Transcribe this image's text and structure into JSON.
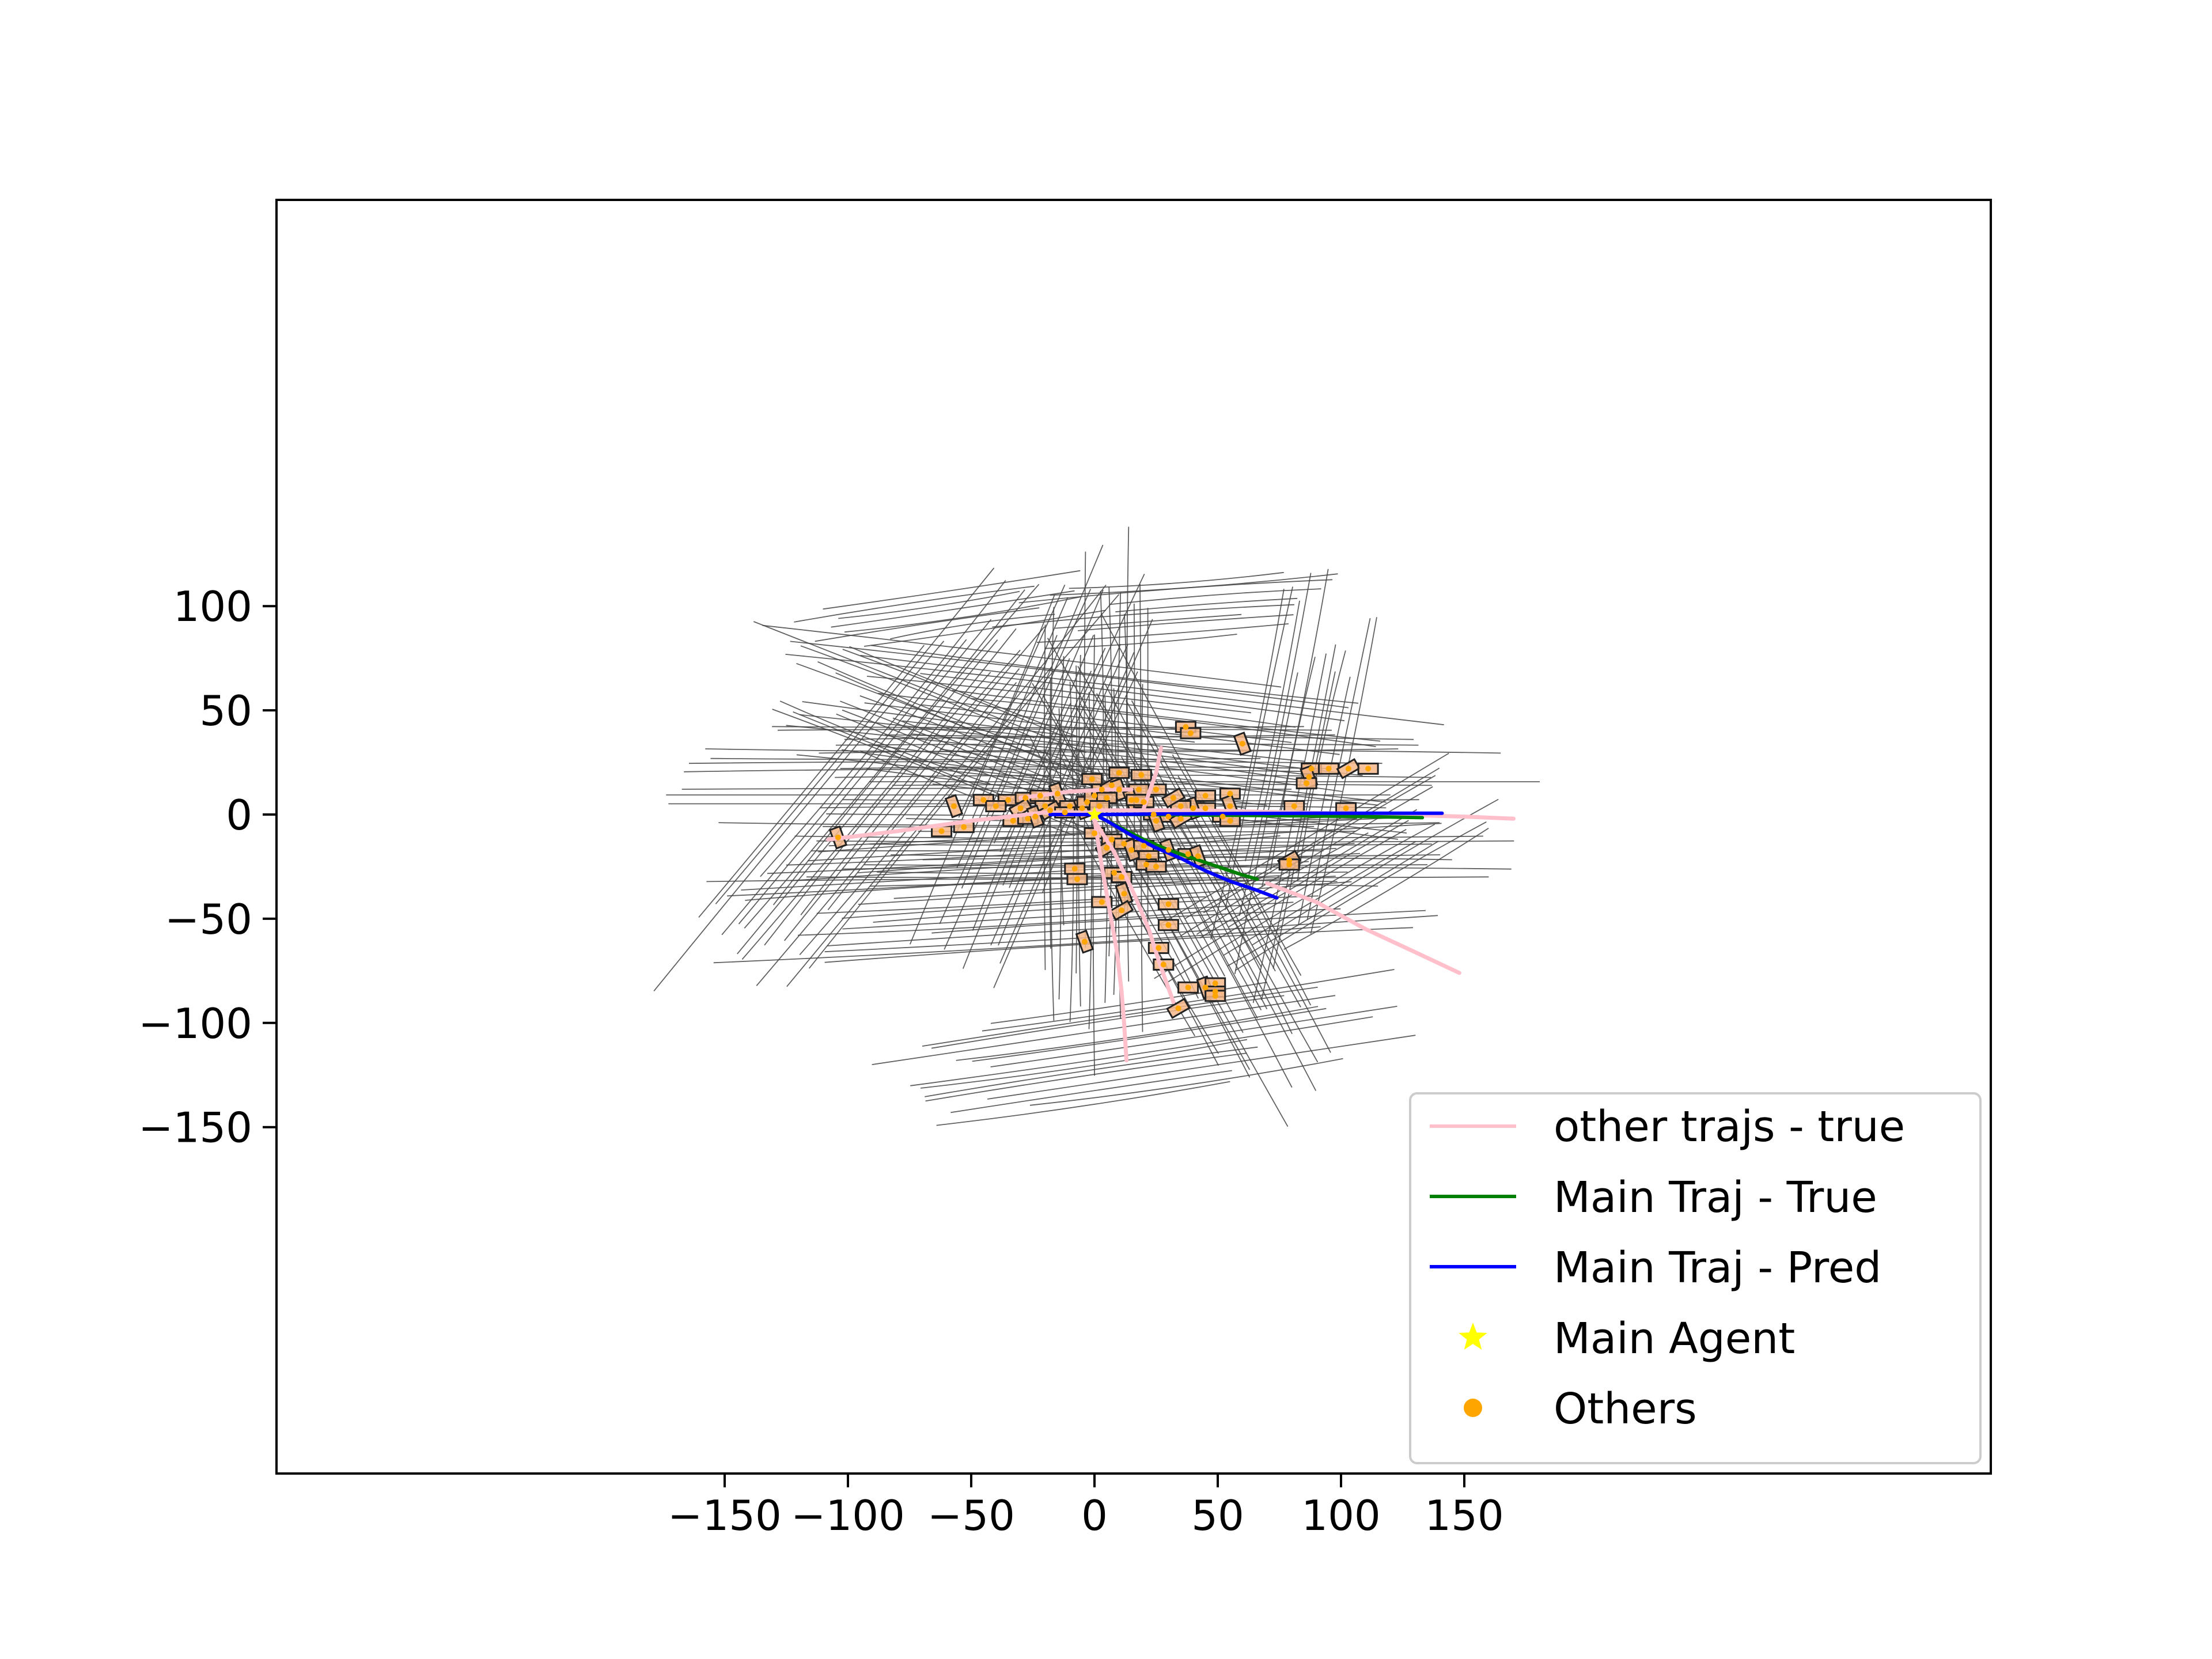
{
  "chart_data": {
    "type": "scatter",
    "title": "",
    "xlabel": "",
    "ylabel": "",
    "xlim": [
      -165,
      185
    ],
    "ylim": [
      -160,
      147
    ],
    "xticks": [
      -150,
      -100,
      -50,
      0,
      50,
      100,
      150
    ],
    "yticks": [
      -150,
      -100,
      -50,
      0,
      50,
      100
    ],
    "xtick_labels": [
      "−150",
      "−100",
      "−50",
      "0",
      "50",
      "100",
      "150"
    ],
    "ytick_labels": [
      "−150",
      "−100",
      "−50",
      "0",
      "50",
      "100"
    ],
    "grid": false,
    "legend_position": "lower-right",
    "legend": [
      {
        "label": "other trajs - true",
        "kind": "line",
        "color": "#ffc0cb"
      },
      {
        "label": "Main Traj - True",
        "kind": "line",
        "color": "#008000"
      },
      {
        "label": "Main Traj - Pred",
        "kind": "line",
        "color": "#0000ff"
      },
      {
        "label": "Main Agent",
        "kind": "star",
        "color": "#ffff00"
      },
      {
        "label": "Others",
        "kind": "dot",
        "color": "#ffa500"
      }
    ],
    "series": [
      {
        "name": "Main Traj - True",
        "color": "#008000",
        "points": [
          [
            0,
            0
          ],
          [
            5,
            -3
          ],
          [
            10,
            -6
          ],
          [
            20,
            -12
          ],
          [
            30,
            -17
          ],
          [
            40,
            -21
          ],
          [
            50,
            -25
          ],
          [
            60,
            -29
          ],
          [
            66,
            -31
          ]
        ]
      },
      {
        "name": "Main Traj - True",
        "color": "#008000",
        "points": [
          [
            0,
            0
          ],
          [
            20,
            0
          ],
          [
            50,
            -0.3
          ],
          [
            80,
            -0.6
          ],
          [
            110,
            -1
          ],
          [
            133,
            -1.5
          ]
        ]
      },
      {
        "name": "Main Traj - Pred",
        "color": "#0000ff",
        "points": [
          [
            -18,
            0
          ],
          [
            0,
            0
          ],
          [
            5,
            -3
          ],
          [
            15,
            -10
          ],
          [
            25,
            -16
          ],
          [
            35,
            -21
          ],
          [
            45,
            -27
          ],
          [
            55,
            -32
          ],
          [
            65,
            -36
          ],
          [
            74,
            -40
          ]
        ]
      },
      {
        "name": "Main Traj - Pred",
        "color": "#0000ff",
        "points": [
          [
            0,
            0
          ],
          [
            30,
            0.3
          ],
          [
            60,
            0.5
          ],
          [
            90,
            0.6
          ],
          [
            120,
            0.6
          ],
          [
            141,
            0.6
          ]
        ]
      },
      {
        "name": "other trajs - true",
        "color": "#ffc0cb",
        "points": [
          [
            -108,
            -12
          ],
          [
            -80,
            -8
          ],
          [
            -50,
            -3
          ],
          [
            -20,
            1
          ],
          [
            0,
            1
          ]
        ]
      },
      {
        "name": "other trajs - true",
        "color": "#ffc0cb",
        "points": [
          [
            0,
            2
          ],
          [
            40,
            2
          ],
          [
            80,
            1
          ],
          [
            120,
            0
          ],
          [
            150,
            -1
          ],
          [
            170,
            -2
          ]
        ]
      },
      {
        "name": "other trajs - true",
        "color": "#ffc0cb",
        "points": [
          [
            0,
            -2
          ],
          [
            3,
            -25
          ],
          [
            6,
            -45
          ],
          [
            9,
            -65
          ],
          [
            11,
            -85
          ],
          [
            12,
            -100
          ],
          [
            13,
            -118
          ]
        ]
      },
      {
        "name": "other trajs - true",
        "color": "#ffc0cb",
        "points": [
          [
            0,
            -3
          ],
          [
            8,
            -18
          ],
          [
            16,
            -38
          ],
          [
            22,
            -55
          ],
          [
            26,
            -70
          ],
          [
            32,
            -90
          ]
        ]
      },
      {
        "name": "other trajs - true",
        "color": "#ffc0cb",
        "points": [
          [
            -30,
            8
          ],
          [
            -10,
            11
          ],
          [
            5,
            12
          ],
          [
            15,
            12
          ]
        ]
      },
      {
        "name": "other trajs - true",
        "color": "#ffc0cb",
        "points": [
          [
            20,
            3
          ],
          [
            22,
            10
          ],
          [
            25,
            20
          ],
          [
            27,
            32
          ]
        ]
      },
      {
        "name": "other trajs - true",
        "color": "#ffc0cb",
        "points": [
          [
            70,
            -33
          ],
          [
            90,
            -42
          ],
          [
            110,
            -55
          ],
          [
            130,
            -66
          ],
          [
            148,
            -76
          ]
        ]
      }
    ],
    "main_agent": {
      "x": 0,
      "y": 0
    },
    "others": [
      [
        -57,
        4
      ],
      [
        -45,
        7
      ],
      [
        -35,
        7
      ],
      [
        -28,
        8
      ],
      [
        -22,
        9
      ],
      [
        -15,
        10
      ],
      [
        -40,
        4
      ],
      [
        -30,
        3
      ],
      [
        -20,
        4
      ],
      [
        -10,
        4
      ],
      [
        -5,
        3
      ],
      [
        -3,
        6
      ],
      [
        0,
        9
      ],
      [
        3,
        12
      ],
      [
        7,
        14
      ],
      [
        10,
        12
      ],
      [
        5,
        8
      ],
      [
        2,
        4
      ],
      [
        -33,
        -3
      ],
      [
        -27,
        -2
      ],
      [
        -24,
        -1
      ],
      [
        -18,
        2
      ],
      [
        -12,
        1
      ],
      [
        -62,
        -8
      ],
      [
        -53,
        -6
      ],
      [
        -104,
        -11
      ],
      [
        0,
        -9
      ],
      [
        7,
        -12
      ],
      [
        5,
        -16
      ],
      [
        12,
        -14
      ],
      [
        15,
        -17
      ],
      [
        20,
        -15
      ],
      [
        22,
        -20
      ],
      [
        21,
        -24
      ],
      [
        25,
        -25
      ],
      [
        30,
        -17
      ],
      [
        -8,
        -26
      ],
      [
        -7,
        -31
      ],
      [
        8,
        -28
      ],
      [
        11,
        -30
      ],
      [
        12,
        -38
      ],
      [
        3,
        -42
      ],
      [
        11,
        -46
      ],
      [
        30,
        -43
      ],
      [
        30,
        -53
      ],
      [
        -4,
        -61
      ],
      [
        26,
        -64
      ],
      [
        28,
        -72
      ],
      [
        38,
        -83
      ],
      [
        34,
        -93
      ],
      [
        45,
        -83
      ],
      [
        49,
        -81
      ],
      [
        49,
        -85
      ],
      [
        49,
        -87
      ],
      [
        38,
        -19
      ],
      [
        42,
        -20
      ],
      [
        79,
        -22
      ],
      [
        79,
        -24
      ],
      [
        37,
        42
      ],
      [
        39,
        39
      ],
      [
        60,
        34
      ],
      [
        88,
        22
      ],
      [
        95,
        22
      ],
      [
        103,
        22
      ],
      [
        111,
        22
      ],
      [
        87,
        18
      ],
      [
        86,
        15
      ],
      [
        81,
        4
      ],
      [
        102,
        3
      ],
      [
        55,
        10
      ],
      [
        55,
        4
      ],
      [
        52,
        -1
      ],
      [
        55,
        -3
      ],
      [
        45,
        3
      ],
      [
        45,
        9
      ],
      [
        40,
        3
      ],
      [
        35,
        4
      ],
      [
        32,
        8
      ],
      [
        25,
        12
      ],
      [
        18,
        12
      ],
      [
        15,
        7
      ],
      [
        20,
        6
      ],
      [
        24,
        0
      ],
      [
        30,
        -1
      ],
      [
        35,
        -2
      ],
      [
        25,
        -3
      ],
      [
        17,
        7
      ],
      [
        10,
        20
      ],
      [
        19,
        19
      ],
      [
        -1,
        17
      ]
    ]
  }
}
